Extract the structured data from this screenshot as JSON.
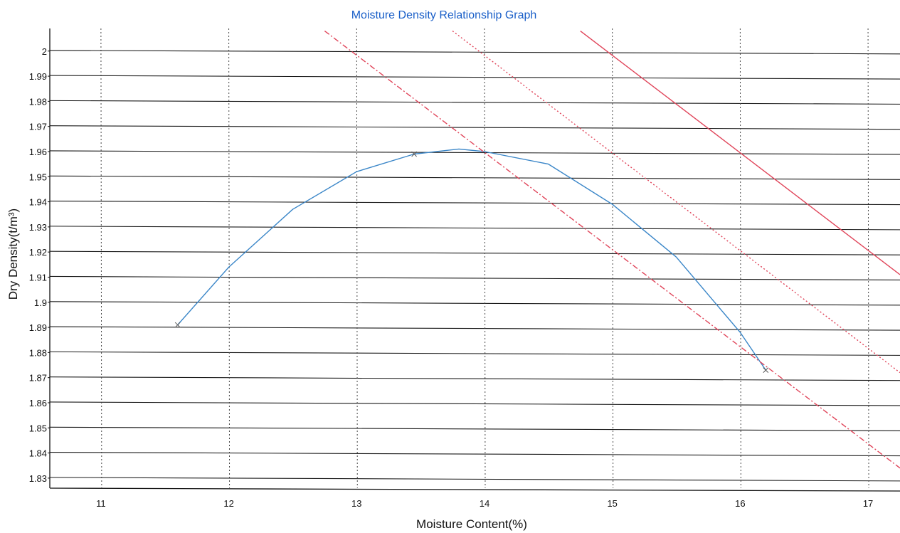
{
  "chart_data": {
    "type": "line",
    "title": "Moisture Density Relationship Graph",
    "xlabel": "Moisture Content(%)",
    "ylabel": "Dry Density(t/m³)",
    "xlim": [
      10.6,
      17.25
    ],
    "ylim": [
      1.826,
      2.009
    ],
    "x_ticks": [
      11,
      12,
      13,
      14,
      15,
      16,
      17
    ],
    "y_ticks": [
      1.83,
      1.84,
      1.85,
      1.86,
      1.87,
      1.88,
      1.89,
      1.9,
      1.91,
      1.92,
      1.93,
      1.94,
      1.95,
      1.96,
      1.97,
      1.98,
      1.99,
      2
    ],
    "y_tick_labels": [
      "1.83",
      "1.84",
      "1.85",
      "1.86",
      "1.87",
      "1.88",
      "1.89",
      "1.9",
      "1.91",
      "1.92",
      "1.93",
      "1.94",
      "1.95",
      "1.96",
      "1.97",
      "1.98",
      "1.99",
      "2"
    ],
    "grid": {
      "horizontal": "solid",
      "vertical": "dotted"
    },
    "series": [
      {
        "kind": "compaction-curve",
        "color": "#3a86c8",
        "markers": "x",
        "points": [
          {
            "x": 11.6,
            "y": 1.891
          },
          {
            "x": 13.45,
            "y": 1.959
          },
          {
            "x": 16.2,
            "y": 1.873
          }
        ],
        "curve": [
          {
            "x": 11.6,
            "y": 1.891
          },
          {
            "x": 12.0,
            "y": 1.914
          },
          {
            "x": 12.5,
            "y": 1.937
          },
          {
            "x": 13.0,
            "y": 1.952
          },
          {
            "x": 13.45,
            "y": 1.959
          },
          {
            "x": 13.8,
            "y": 1.961
          },
          {
            "x": 14.0,
            "y": 1.96
          },
          {
            "x": 14.5,
            "y": 1.955
          },
          {
            "x": 15.0,
            "y": 1.939
          },
          {
            "x": 15.5,
            "y": 1.918
          },
          {
            "x": 16.0,
            "y": 1.888
          },
          {
            "x": 16.2,
            "y": 1.873
          }
        ]
      },
      {
        "kind": "air-voids-line",
        "color": "#e0455a",
        "style": "dashdot",
        "points": [
          {
            "x": 12.75,
            "y": 2.008
          },
          {
            "x": 17.25,
            "y": 1.834
          }
        ]
      },
      {
        "kind": "air-voids-line",
        "color": "#e0455a",
        "style": "dotted",
        "points": [
          {
            "x": 13.75,
            "y": 2.008
          },
          {
            "x": 17.25,
            "y": 1.872
          }
        ]
      },
      {
        "kind": "air-voids-line",
        "color": "#e0455a",
        "style": "solid",
        "points": [
          {
            "x": 14.75,
            "y": 2.008
          },
          {
            "x": 17.25,
            "y": 1.911
          }
        ]
      }
    ]
  }
}
